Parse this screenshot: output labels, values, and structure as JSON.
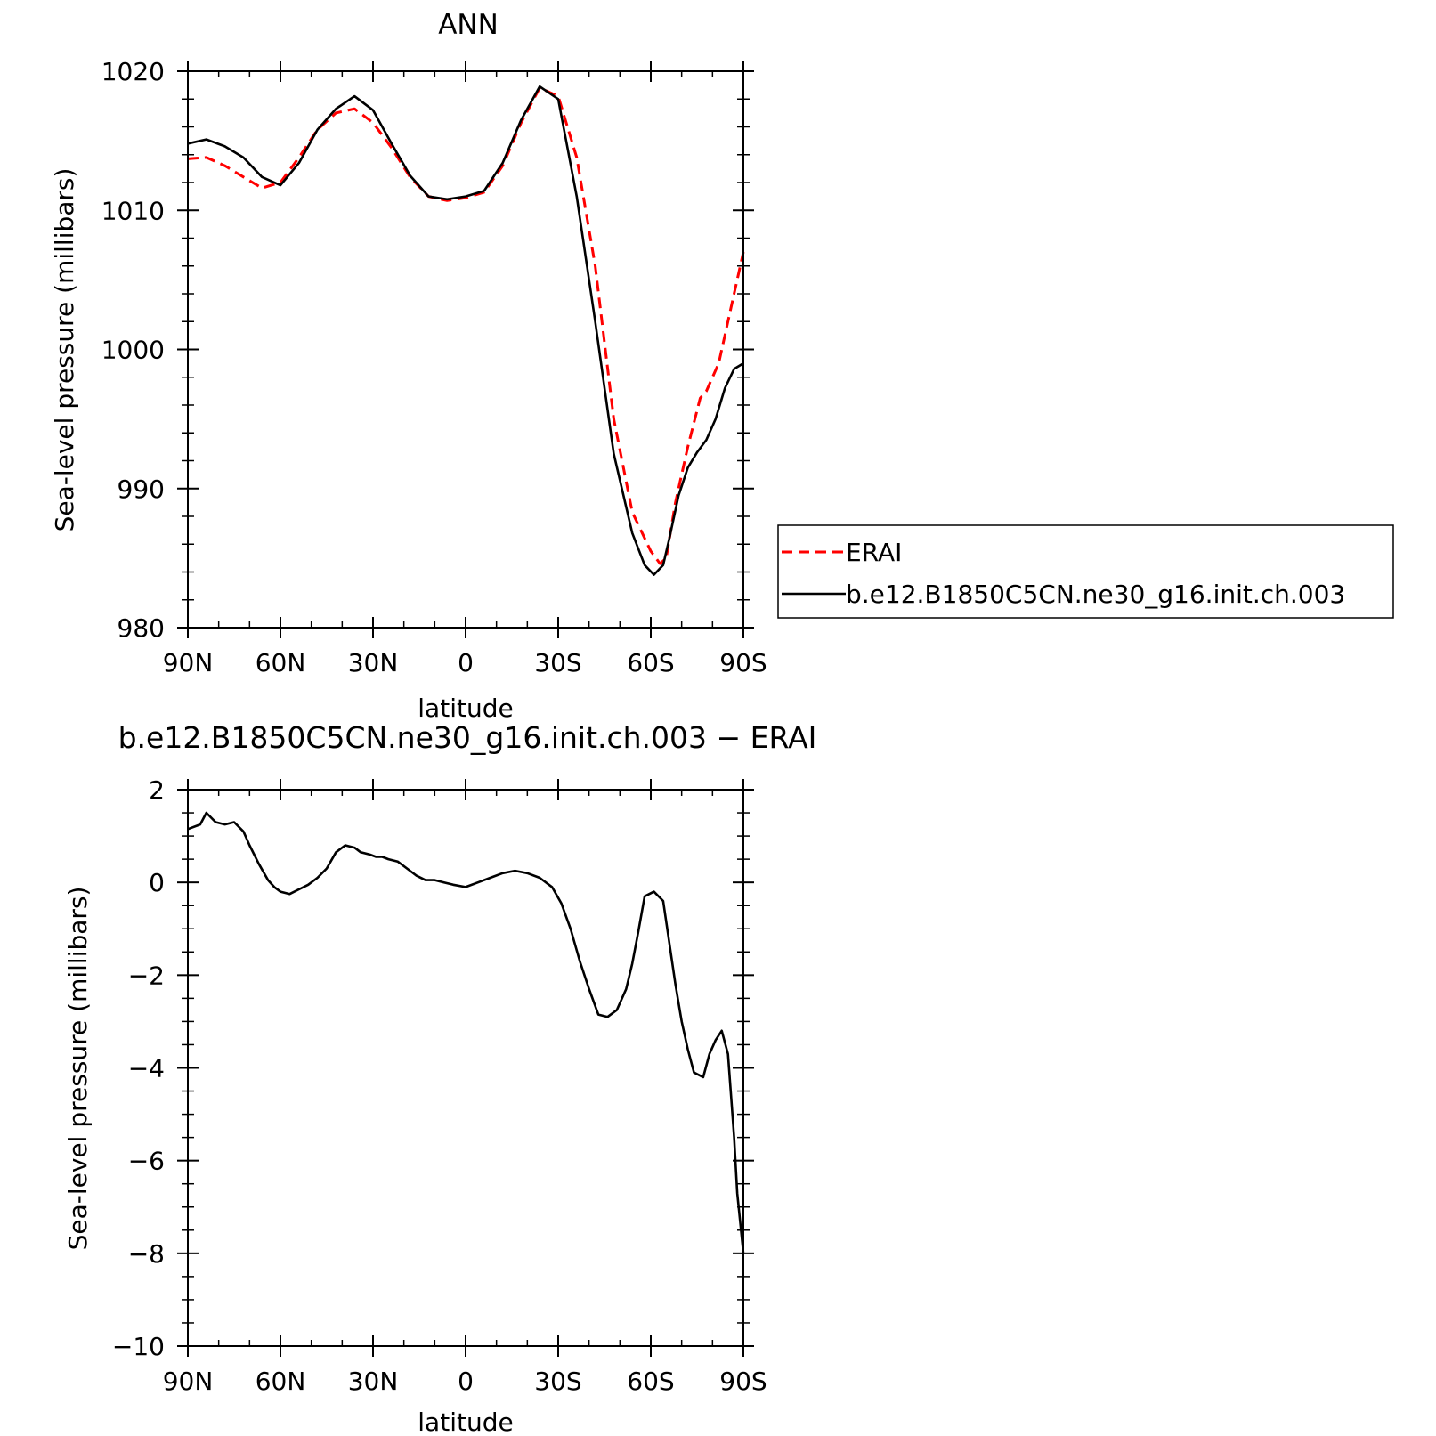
{
  "chart_data": [
    {
      "type": "line",
      "title": "ANN",
      "xlabel": "latitude",
      "ylabel": "Sea-level pressure (millibars)",
      "xlim": [
        90,
        -90
      ],
      "ylim": [
        980,
        1020
      ],
      "xticks": [
        90,
        60,
        30,
        0,
        -30,
        -60,
        -90
      ],
      "xtick_labels": [
        "90N",
        "60N",
        "30N",
        "0",
        "30S",
        "60S",
        "90S"
      ],
      "yticks": [
        980,
        990,
        1000,
        1010,
        1020
      ],
      "ytick_labels": [
        "980",
        "990",
        "1000",
        "1010",
        "1020"
      ],
      "legend_position": "right",
      "series": [
        {
          "name": "ERAI",
          "color": "#ff0000",
          "dash": "dashed",
          "x": [
            90,
            84,
            78,
            72,
            66,
            60,
            54,
            48,
            42,
            36,
            30,
            24,
            18,
            12,
            6,
            0,
            -6,
            -12,
            -18,
            -24,
            -30,
            -36,
            -42,
            -48,
            -54,
            -60,
            -63,
            -65,
            -68,
            -72,
            -76,
            -78,
            -82,
            -86,
            -90
          ],
          "y": [
            1013.7,
            1013.8,
            1013.2,
            1012.4,
            1011.6,
            1012.0,
            1013.8,
            1015.8,
            1017.0,
            1017.3,
            1016.3,
            1014.5,
            1012.4,
            1011.0,
            1010.7,
            1010.9,
            1011.3,
            1013.2,
            1016.3,
            1018.8,
            1018.2,
            1013.8,
            1006.0,
            995.0,
            988.3,
            985.5,
            984.6,
            985.0,
            989.0,
            993.0,
            996.5,
            997.0,
            999.0,
            1003.0,
            1007.0
          ]
        },
        {
          "name": "b.e12.B1850C5CN.ne30_g16.init.ch.003",
          "color": "#000000",
          "dash": "solid",
          "x": [
            90,
            84,
            78,
            72,
            66,
            60,
            54,
            48,
            42,
            36,
            30,
            24,
            18,
            12,
            6,
            0,
            -6,
            -12,
            -18,
            -24,
            -30,
            -36,
            -42,
            -48,
            -54,
            -58,
            -61,
            -64,
            -66,
            -69,
            -72,
            -75,
            -78,
            -81,
            -84,
            -87,
            -90
          ],
          "y": [
            1014.8,
            1015.1,
            1014.6,
            1013.8,
            1012.4,
            1011.8,
            1013.4,
            1015.8,
            1017.3,
            1018.2,
            1017.2,
            1014.8,
            1012.5,
            1011.0,
            1010.8,
            1011.0,
            1011.4,
            1013.4,
            1016.5,
            1018.9,
            1018.0,
            1011.0,
            1002.0,
            992.5,
            986.8,
            984.5,
            983.8,
            984.5,
            986.4,
            989.5,
            991.5,
            992.6,
            993.5,
            995.0,
            997.2,
            998.6,
            999.0
          ]
        }
      ]
    },
    {
      "type": "line",
      "title": "b.e12.B1850C5CN.ne30_g16.init.ch.003 − ERAI",
      "xlabel": "latitude",
      "ylabel": "Sea-level pressure (millibars)",
      "xlim": [
        90,
        -90
      ],
      "ylim": [
        -10,
        2
      ],
      "xticks": [
        90,
        60,
        30,
        0,
        -30,
        -60,
        -90
      ],
      "xtick_labels": [
        "90N",
        "60N",
        "30N",
        "0",
        "30S",
        "60S",
        "90S"
      ],
      "yticks": [
        -10,
        -8,
        -6,
        -4,
        -2,
        0,
        2
      ],
      "ytick_labels": [
        "−10",
        "−8",
        "−6",
        "−4",
        "−2",
        "0",
        "2"
      ],
      "series": [
        {
          "color": "#000000",
          "dash": "solid",
          "x": [
            90,
            86,
            84,
            81,
            78,
            75,
            72,
            70,
            67,
            64,
            62,
            60,
            57,
            54,
            51,
            48,
            45,
            42,
            39,
            36,
            34,
            31,
            29,
            27,
            25,
            22,
            19,
            16,
            13,
            10,
            7,
            4,
            0,
            -4,
            -8,
            -12,
            -16,
            -20,
            -24,
            -28,
            -31,
            -34,
            -37,
            -40,
            -43,
            -46,
            -49,
            -52,
            -54,
            -56,
            -58,
            -61,
            -64,
            -66,
            -68,
            -70,
            -72,
            -74,
            -77,
            -79,
            -81,
            -83,
            -85,
            -87,
            -88,
            -90
          ],
          "y": [
            1.15,
            1.25,
            1.5,
            1.3,
            1.25,
            1.3,
            1.1,
            0.8,
            0.4,
            0.05,
            -0.1,
            -0.2,
            -0.25,
            -0.15,
            -0.05,
            0.1,
            0.3,
            0.65,
            0.8,
            0.75,
            0.65,
            0.6,
            0.55,
            0.55,
            0.5,
            0.45,
            0.3,
            0.15,
            0.05,
            0.05,
            0.0,
            -0.05,
            -0.1,
            0.0,
            0.1,
            0.2,
            0.25,
            0.2,
            0.1,
            -0.1,
            -0.45,
            -1.0,
            -1.7,
            -2.3,
            -2.85,
            -2.9,
            -2.75,
            -2.3,
            -1.75,
            -1.05,
            -0.3,
            -0.2,
            -0.4,
            -1.3,
            -2.2,
            -3.0,
            -3.6,
            -4.1,
            -4.2,
            -3.7,
            -3.4,
            -3.2,
            -3.7,
            -5.5,
            -6.7,
            -8.0
          ]
        }
      ]
    }
  ]
}
